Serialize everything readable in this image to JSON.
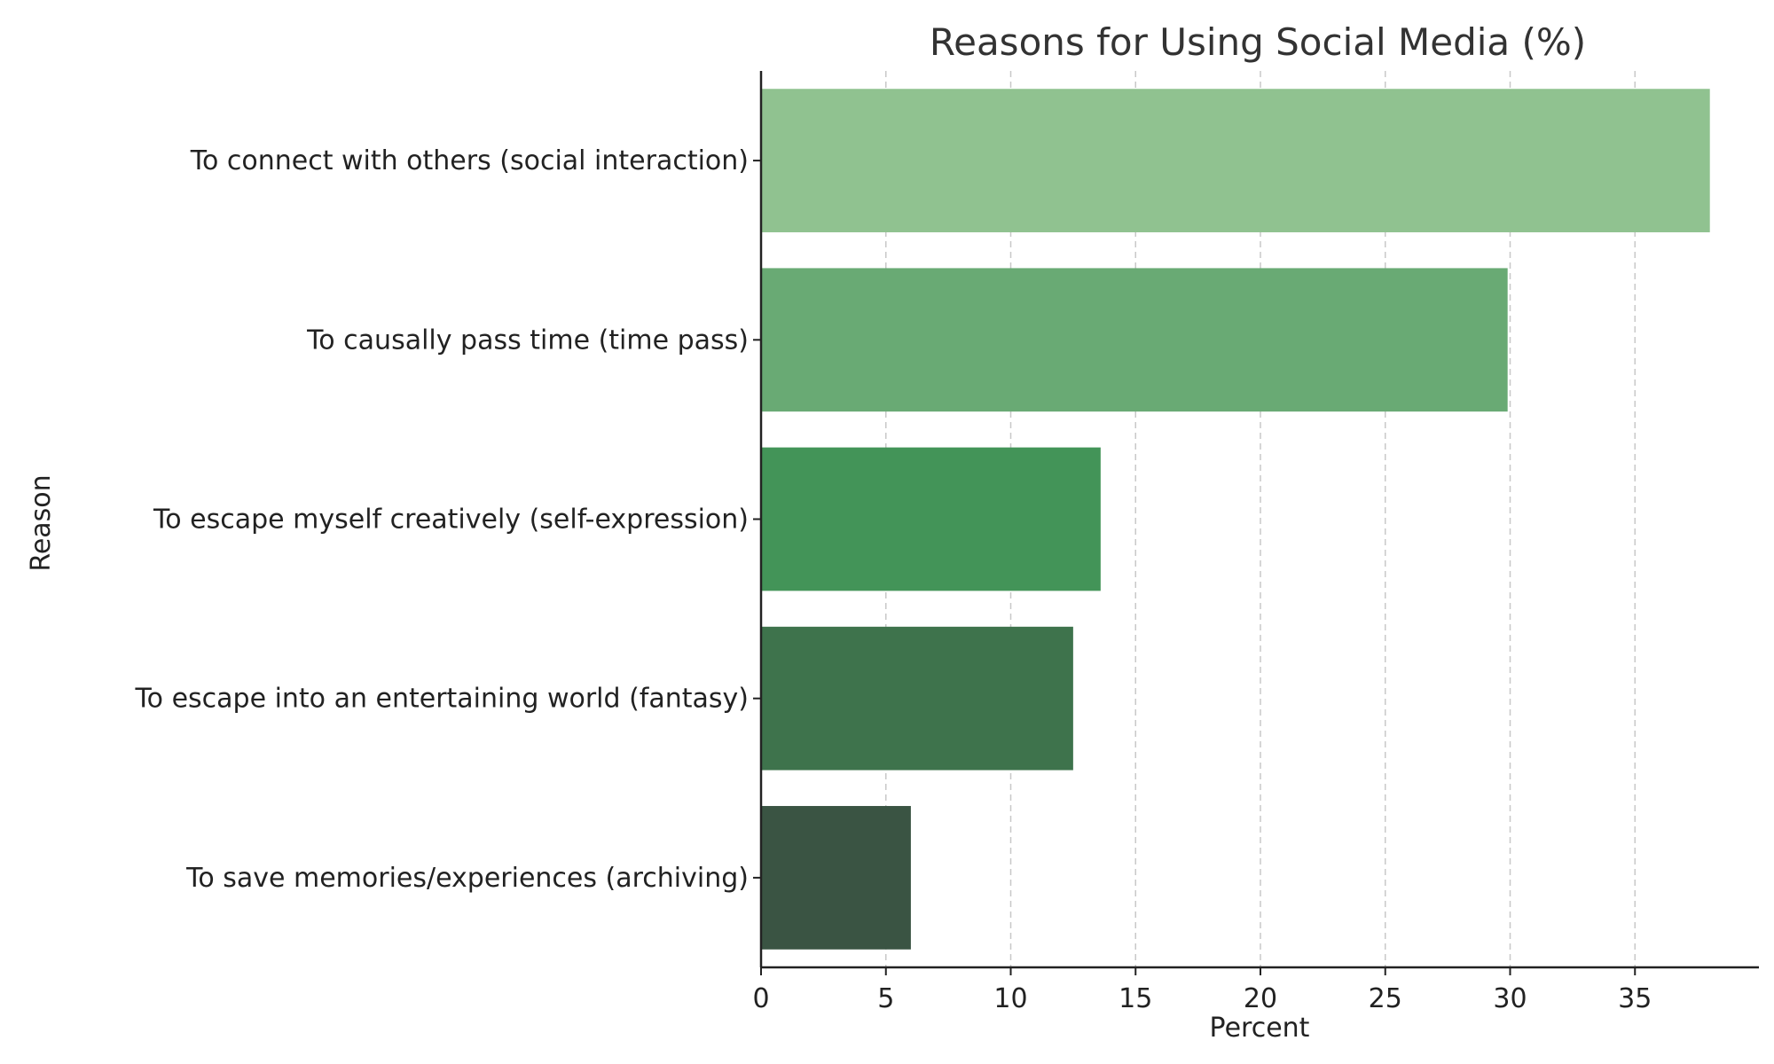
{
  "chart_data": {
    "type": "bar",
    "orientation": "horizontal",
    "title": "Reasons for Using Social Media (%)",
    "xlabel": "Percent",
    "ylabel": "Reason",
    "categories": [
      "To connect with others (social interaction)",
      "To causally pass time (time pass)",
      "To escape myself creatively (self-expression)",
      "To escape into an entertaining world (fantasy)",
      "To save memories/experiences (archiving)"
    ],
    "values": [
      38,
      29.9,
      13.6,
      12.5,
      6
    ],
    "colors": [
      "#90c290",
      "#69aa74",
      "#439458",
      "#3e734c",
      "#3a5443"
    ],
    "xticks": [
      0,
      5,
      10,
      15,
      20,
      25,
      30,
      35
    ],
    "xlim": [
      0,
      40
    ],
    "grid": "x-dashed",
    "legend": "none"
  }
}
